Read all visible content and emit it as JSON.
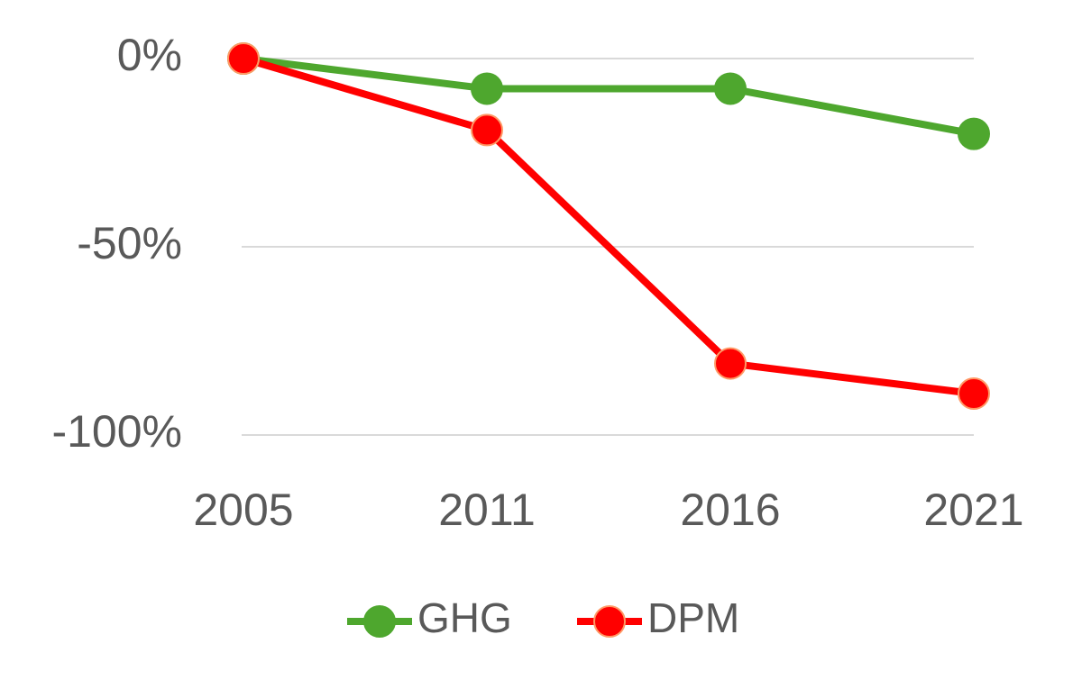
{
  "chart_data": {
    "type": "line",
    "categories": [
      "2005",
      "2011",
      "2016",
      "2021"
    ],
    "series": [
      {
        "name": "GHG",
        "color": "#4ea72e",
        "values": [
          0,
          -8,
          -8,
          -20
        ]
      },
      {
        "name": "DPM",
        "color": "#ff0000",
        "values": [
          0,
          -19,
          -81,
          -89
        ]
      }
    ],
    "ylim": [
      -100,
      0
    ],
    "yticks": [
      {
        "value": -100,
        "label": "-100%"
      },
      {
        "value": -50,
        "label": "-50%"
      },
      {
        "value": 0,
        "label": "0%"
      }
    ],
    "grid": true,
    "legend": "bottom"
  }
}
